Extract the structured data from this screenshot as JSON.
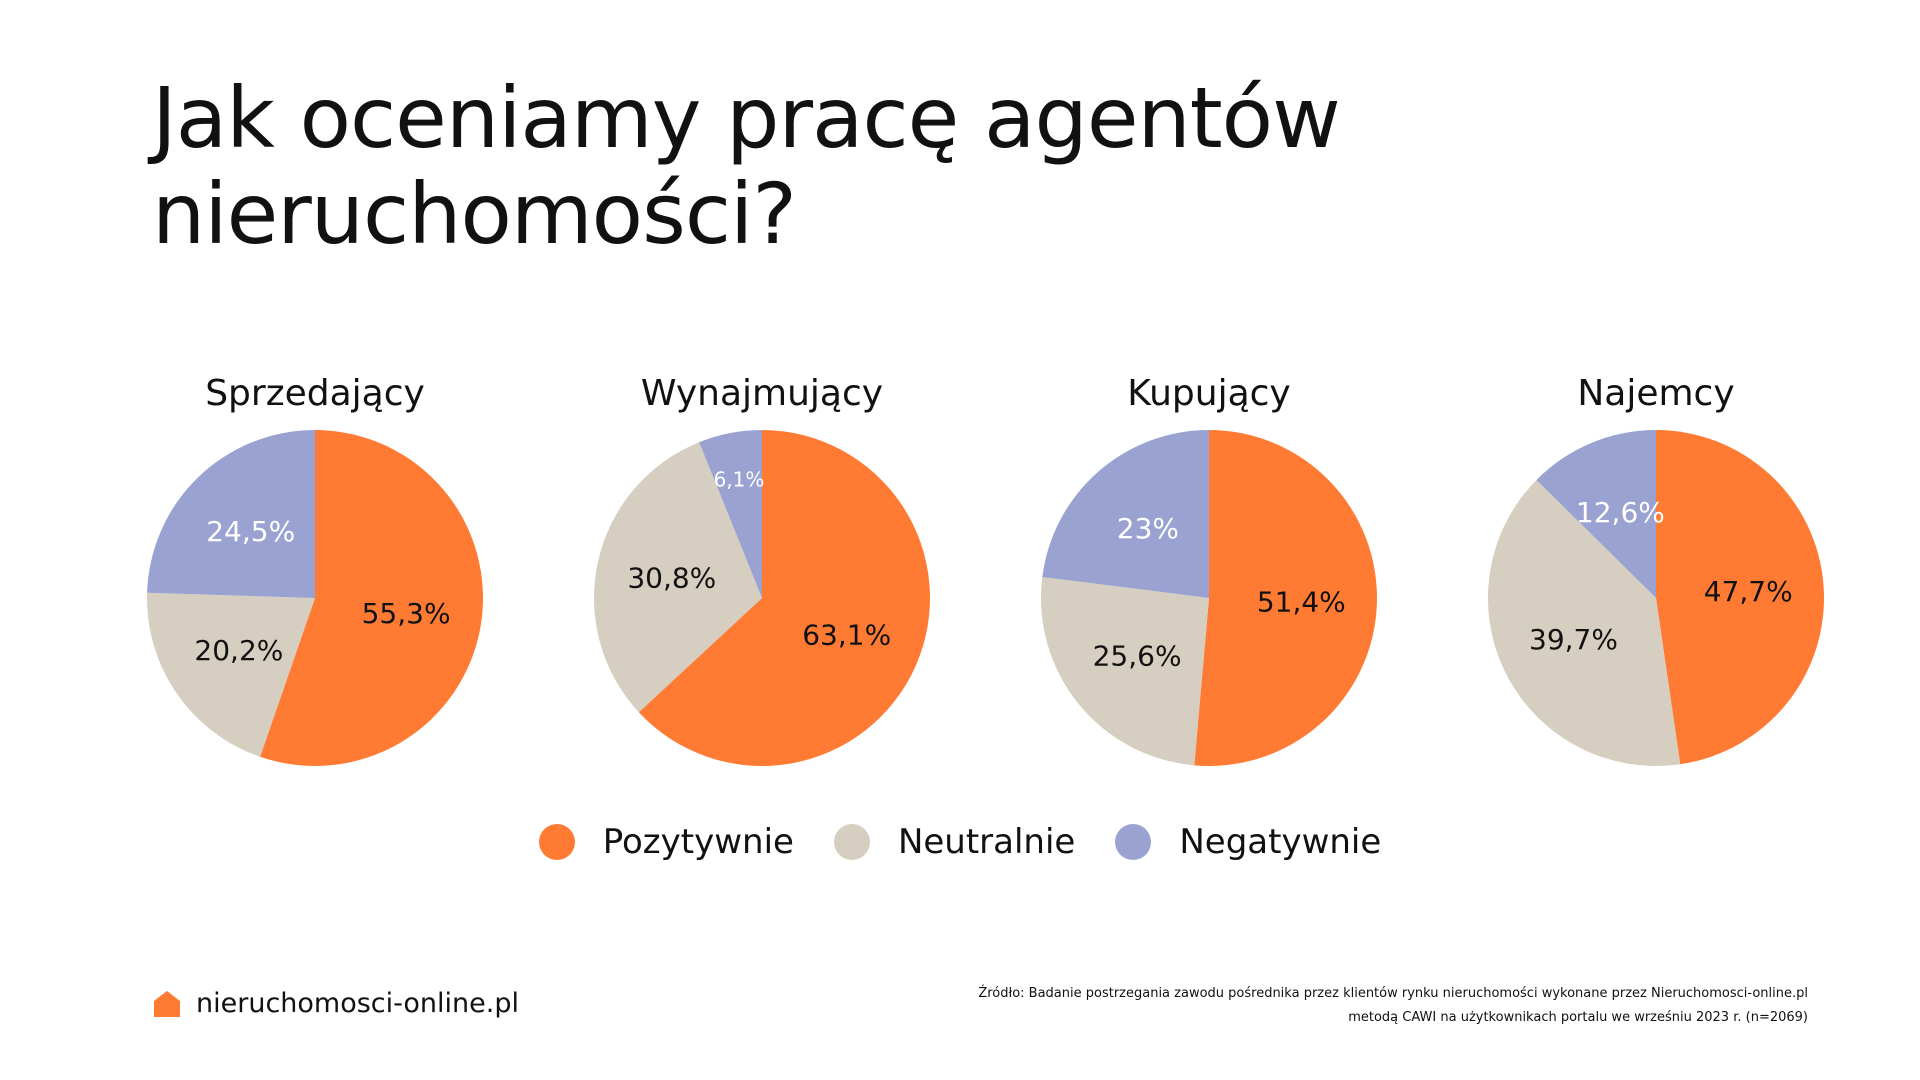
{
  "header": {
    "title": "Jak oceniamy pracę agentów nieruchomości?"
  },
  "chart_data": [
    {
      "type": "pie",
      "title": "Sprzedający",
      "categories": [
        "Pozytywnie",
        "Neutralnie",
        "Negatywnie"
      ],
      "values": [
        55.3,
        20.2,
        24.5
      ],
      "labels": [
        "55,3%",
        "20,2%",
        "24,5%"
      ],
      "colors": [
        "#FF7A33",
        "#D6CEC0",
        "#9AA2D1"
      ],
      "label_colors": [
        "#111111",
        "#111111",
        "#ffffff"
      ],
      "legend": "bottom-center"
    },
    {
      "type": "pie",
      "title": "Wynajmujący",
      "categories": [
        "Pozytywnie",
        "Neutralnie",
        "Negatywnie"
      ],
      "values": [
        63.1,
        30.8,
        6.1
      ],
      "labels": [
        "63,1%",
        "30,8%",
        "6,1%"
      ],
      "colors": [
        "#FF7A33",
        "#D6CEC0",
        "#9AA2D1"
      ],
      "label_colors": [
        "#111111",
        "#111111",
        "#ffffff"
      ],
      "legend": "bottom-center"
    },
    {
      "type": "pie",
      "title": "Kupujący",
      "categories": [
        "Pozytywnie",
        "Neutralnie",
        "Negatywnie"
      ],
      "values": [
        51.4,
        25.6,
        23
      ],
      "labels": [
        "51,4%",
        "25,6%",
        "23%"
      ],
      "colors": [
        "#FF7A33",
        "#D6CEC0",
        "#9AA2D1"
      ],
      "label_colors": [
        "#111111",
        "#111111",
        "#ffffff"
      ],
      "legend": "bottom-center"
    },
    {
      "type": "pie",
      "title": "Najemcy",
      "categories": [
        "Pozytywnie",
        "Neutralnie",
        "Negatywnie"
      ],
      "values": [
        47.7,
        39.7,
        12.6
      ],
      "labels": [
        "47,7%",
        "39,7%",
        "12,6%"
      ],
      "colors": [
        "#FF7A33",
        "#D6CEC0",
        "#9AA2D1"
      ],
      "label_colors": [
        "#111111",
        "#111111",
        "#ffffff"
      ],
      "legend": "bottom-center"
    }
  ],
  "legend": {
    "items": [
      {
        "label": "Pozytywnie",
        "color": "#FF7A33"
      },
      {
        "label": "Neutralnie",
        "color": "#D6CEC0"
      },
      {
        "label": "Negatywnie",
        "color": "#9AA2D1"
      }
    ]
  },
  "footer": {
    "brand_name": "nieruchomosci-online.pl",
    "brand_icon": "house-icon",
    "brand_color": "#FF7A33",
    "source_line1": "Źródło: Badanie postrzegania zawodu pośrednika przez klientów rynku nieruchomości wykonane przez Nieruchomosci-online.pl",
    "source_line2": "metodą CAWI na użytkownikach portalu we wrześniu 2023 r. (n=2069)"
  }
}
